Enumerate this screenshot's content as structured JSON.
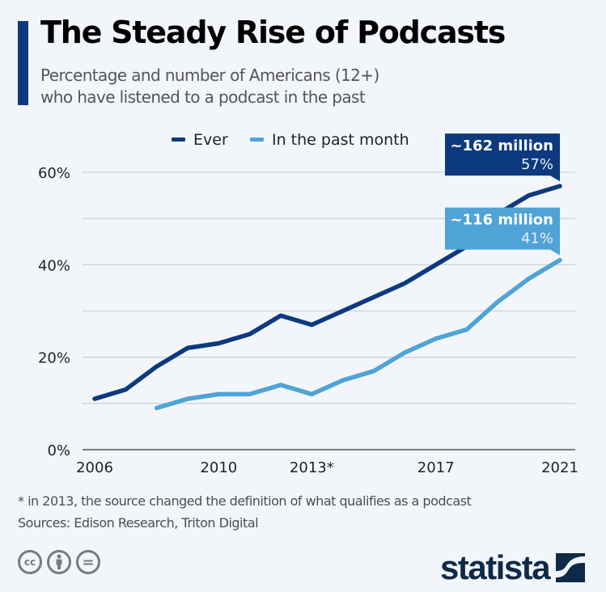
{
  "header": {
    "title": "The Steady Rise of Podcasts",
    "subtitle_line1": "Percentage and number of Americans (12+)",
    "subtitle_line2": "who have listened to a podcast in the past"
  },
  "colors": {
    "accent": "#0d3a7e",
    "ever": "#0d3a7e",
    "past_month": "#4fa3d6",
    "grid": "#cfd3d8",
    "background": "#f2f6fb"
  },
  "chart_data": {
    "type": "line",
    "title": "The Steady Rise of Podcasts",
    "subtitle": "Percentage and number of Americans (12+) who have listened to a podcast in the past",
    "xlabel": "",
    "ylabel": "",
    "x": [
      2006,
      2007,
      2008,
      2009,
      2010,
      2011,
      2012,
      2013,
      2014,
      2015,
      2016,
      2017,
      2018,
      2019,
      2020,
      2021
    ],
    "x_ticks": [
      2006,
      2010,
      2013,
      2017,
      2021
    ],
    "x_tick_labels": [
      "2006",
      "2010",
      "2013*",
      "2017",
      "2021"
    ],
    "y_ticks": [
      0,
      20,
      40,
      60
    ],
    "y_tick_labels": [
      "0%",
      "20%",
      "40%",
      "60%"
    ],
    "ylim": [
      0,
      60
    ],
    "grid": true,
    "grid_step": 10,
    "legend_position": "top-center",
    "series": [
      {
        "name": "Ever",
        "color": "#0d3a7e",
        "values": [
          11,
          13,
          18,
          22,
          23,
          25,
          29,
          27,
          30,
          33,
          36,
          40,
          44,
          51,
          55,
          57
        ]
      },
      {
        "name": "In the past month",
        "color": "#4fa3d6",
        "values": [
          null,
          null,
          9,
          11,
          12,
          12,
          14,
          12,
          15,
          17,
          21,
          24,
          26,
          32,
          37,
          41
        ]
      }
    ],
    "annotations": [
      {
        "series": "Ever",
        "x": 2021,
        "label": "~162 million",
        "value_label": "57%"
      },
      {
        "series": "In the past month",
        "x": 2021,
        "label": "~116 million",
        "value_label": "41%"
      }
    ]
  },
  "footer": {
    "note": "* in 2013, the source changed the definition of what qualifies as a podcast",
    "sources": "Sources: Edison Research, Triton Digital",
    "license_icons": [
      "cc-icon",
      "attribution-icon",
      "no-derivatives-icon"
    ],
    "cc_label": "cc",
    "nd_label": "=",
    "brand": "statista"
  }
}
